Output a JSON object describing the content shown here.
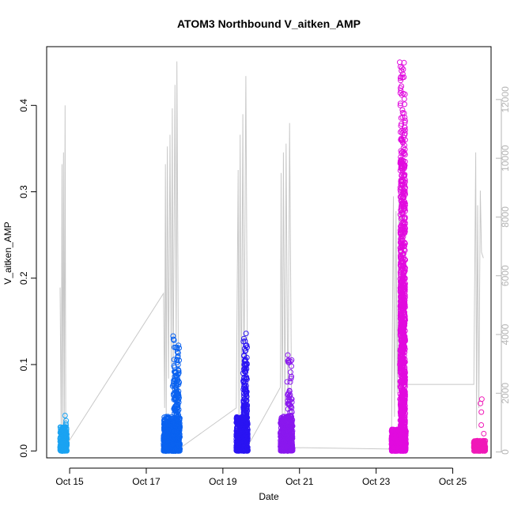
{
  "chart_data": {
    "type": "scatter",
    "title": "ATOM3 Northbound V_aitken_AMP",
    "xlabel": "Date",
    "ylabel": "V_aitken_AMP",
    "x_ticks": [
      "Oct 15",
      "Oct 17",
      "Oct 19",
      "Oct 21",
      "Oct 23",
      "Oct 25"
    ],
    "x_tick_days": [
      15,
      17,
      19,
      21,
      23,
      25
    ],
    "xlim_days": [
      14.4,
      26.0
    ],
    "y_left": {
      "ticks": [
        "0.0",
        "0.1",
        "0.2",
        "0.3",
        "0.4"
      ],
      "tick_values": [
        0,
        0.1,
        0.2,
        0.3,
        0.4
      ],
      "ylim": [
        -0.008,
        0.468
      ]
    },
    "y_right": {
      "ticks": [
        "0",
        "2000",
        "4000",
        "6000",
        "8000",
        "10000",
        "12000"
      ],
      "tick_values": [
        0,
        2000,
        4000,
        6000,
        8000,
        10000,
        12000
      ],
      "ylim": [
        -200,
        13800
      ],
      "color": "#b5b5b5"
    },
    "grid": false,
    "line_series": {
      "axis": "right",
      "color": "#c8c8c8",
      "points": [
        [
          14.75,
          5600
        ],
        [
          14.78,
          600
        ],
        [
          14.8,
          9800
        ],
        [
          14.82,
          500
        ],
        [
          14.84,
          10200
        ],
        [
          14.86,
          700
        ],
        [
          14.88,
          11800
        ],
        [
          14.9,
          200
        ],
        [
          17.45,
          5400
        ],
        [
          17.48,
          1500
        ],
        [
          17.5,
          9800
        ],
        [
          17.52,
          1200
        ],
        [
          17.55,
          10400
        ],
        [
          17.58,
          2500
        ],
        [
          17.62,
          10800
        ],
        [
          17.65,
          3000
        ],
        [
          17.68,
          11700
        ],
        [
          17.7,
          2000
        ],
        [
          17.75,
          12500
        ],
        [
          17.78,
          3500
        ],
        [
          17.8,
          13300
        ],
        [
          17.85,
          100
        ],
        [
          19.35,
          1500
        ],
        [
          19.4,
          9600
        ],
        [
          19.42,
          800
        ],
        [
          19.45,
          10800
        ],
        [
          19.48,
          1200
        ],
        [
          19.52,
          11500
        ],
        [
          19.55,
          2000
        ],
        [
          19.6,
          12800
        ],
        [
          19.65,
          200
        ],
        [
          20.5,
          2200
        ],
        [
          20.52,
          9500
        ],
        [
          20.55,
          800
        ],
        [
          20.58,
          10200
        ],
        [
          20.62,
          1200
        ],
        [
          20.65,
          10500
        ],
        [
          20.7,
          800
        ],
        [
          20.74,
          11200
        ],
        [
          20.8,
          150
        ],
        [
          23.4,
          100
        ],
        [
          23.45,
          8700
        ],
        [
          23.48,
          1200
        ],
        [
          23.52,
          8200
        ],
        [
          23.55,
          2000
        ],
        [
          23.6,
          9200
        ],
        [
          23.62,
          1500
        ],
        [
          23.65,
          8400
        ],
        [
          23.7,
          7600
        ],
        [
          23.75,
          2300
        ],
        [
          25.55,
          2300
        ],
        [
          25.6,
          10200
        ],
        [
          25.62,
          800
        ],
        [
          25.65,
          8400
        ],
        [
          25.68,
          1500
        ],
        [
          25.72,
          8900
        ],
        [
          25.75,
          6800
        ],
        [
          25.8,
          6600
        ]
      ]
    },
    "scatter_clusters": [
      {
        "color": "#1aa3f2",
        "x_range": [
          14.75,
          14.93
        ],
        "base": [
          0.0,
          0.028
        ],
        "spikes": [
          0.03,
          0.035,
          0.041,
          0.032
        ],
        "count": 240
      },
      {
        "color": "#0a62f0",
        "x_range": [
          17.45,
          17.88
        ],
        "base": [
          0.0,
          0.04
        ],
        "spikes": [
          0.06,
          0.083,
          0.07,
          0.05,
          0.065,
          0.09,
          0.1,
          0.11,
          0.12,
          0.128,
          0.133,
          0.105,
          0.075
        ],
        "count": 650
      },
      {
        "color": "#2a14f2",
        "x_range": [
          19.35,
          19.65
        ],
        "base": [
          0.0,
          0.04
        ],
        "spikes": [
          0.05,
          0.06,
          0.075,
          0.09,
          0.1,
          0.11,
          0.12,
          0.13,
          0.136,
          0.095,
          0.085
        ],
        "count": 450
      },
      {
        "color": "#8a18ee",
        "x_range": [
          20.5,
          20.82
        ],
        "base": [
          0.0,
          0.04
        ],
        "spikes": [
          0.045,
          0.05,
          0.06,
          0.063,
          0.08,
          0.105,
          0.111,
          0.065
        ],
        "count": 450
      },
      {
        "color": "#e10bde",
        "x_range": [
          23.4,
          23.78
        ],
        "base": [
          0.0,
          0.025
        ],
        "spikes": [
          0.45,
          0.44,
          0.42,
          0.4,
          0.38,
          0.36,
          0.34,
          0.32,
          0.3,
          0.28,
          0.26,
          0.24,
          0.22,
          0.2,
          0.18,
          0.16,
          0.14,
          0.12,
          0.1,
          0.08,
          0.06,
          0.04,
          0.05,
          0.06,
          0.218,
          0.062
        ],
        "count": 600
      },
      {
        "color": "#f01ab8",
        "x_range": [
          25.55,
          25.85
        ],
        "base": [
          0.0,
          0.012
        ],
        "spikes": [
          0.02,
          0.03,
          0.045,
          0.055,
          0.06
        ],
        "count": 320
      }
    ]
  }
}
